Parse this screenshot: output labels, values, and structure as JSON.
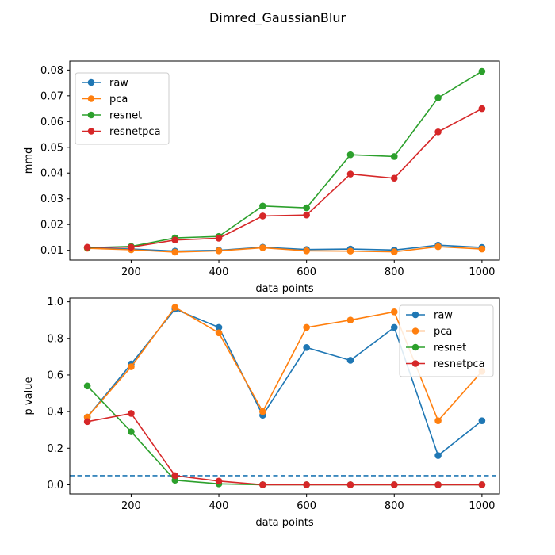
{
  "figure": {
    "suptitle": "Dimred_GaussianBlur"
  },
  "chart_data": [
    {
      "type": "line",
      "xlabel": "data points",
      "ylabel": "mmd",
      "x": [
        100,
        200,
        300,
        400,
        500,
        600,
        700,
        800,
        900,
        1000
      ],
      "xlim": [
        60,
        1040
      ],
      "ylim": [
        0.0062,
        0.0835
      ],
      "xticks": [
        200,
        400,
        600,
        800,
        1000
      ],
      "yticks": [
        0.01,
        0.02,
        0.03,
        0.04,
        0.05,
        0.06,
        0.07,
        0.08
      ],
      "ytick_labels": [
        "0.01",
        "0.02",
        "0.03",
        "0.04",
        "0.05",
        "0.06",
        "0.07",
        "0.08"
      ],
      "legend": "top-left",
      "grid": false,
      "series": [
        {
          "name": "raw",
          "color": "#1f77b4",
          "values": [
            0.011,
            0.0105,
            0.0097,
            0.01,
            0.0112,
            0.0103,
            0.0105,
            0.0101,
            0.012,
            0.0111
          ]
        },
        {
          "name": "pca",
          "color": "#ff7f0e",
          "values": [
            0.0108,
            0.0102,
            0.0093,
            0.0098,
            0.011,
            0.0098,
            0.0097,
            0.0094,
            0.0114,
            0.0105
          ]
        },
        {
          "name": "resnet",
          "color": "#2ca02c",
          "values": [
            0.011,
            0.0115,
            0.0148,
            0.0154,
            0.0272,
            0.0265,
            0.0471,
            0.0464,
            0.0692,
            0.0795
          ]
        },
        {
          "name": "resnetpca",
          "color": "#d62728",
          "values": [
            0.0112,
            0.0112,
            0.014,
            0.0147,
            0.0233,
            0.0237,
            0.0396,
            0.038,
            0.056,
            0.065
          ]
        }
      ]
    },
    {
      "type": "line",
      "xlabel": "data points",
      "ylabel": "p value",
      "x": [
        100,
        200,
        300,
        400,
        500,
        600,
        700,
        800,
        900,
        1000
      ],
      "xlim": [
        60,
        1040
      ],
      "ylim": [
        -0.05,
        1.02
      ],
      "xticks": [
        200,
        400,
        600,
        800,
        1000
      ],
      "yticks": [
        0.0,
        0.2,
        0.4,
        0.6,
        0.8,
        1.0
      ],
      "ytick_labels": [
        "0.0",
        "0.2",
        "0.4",
        "0.6",
        "0.8",
        "1.0"
      ],
      "legend": "top-right",
      "grid": false,
      "reference_line": {
        "y": 0.05,
        "style": "dashed",
        "color": "#1f77b4"
      },
      "series": [
        {
          "name": "raw",
          "color": "#1f77b4",
          "values": [
            0.37,
            0.66,
            0.96,
            0.86,
            0.38,
            0.75,
            0.68,
            0.86,
            0.16,
            0.35
          ]
        },
        {
          "name": "pca",
          "color": "#ff7f0e",
          "values": [
            0.37,
            0.645,
            0.97,
            0.83,
            0.4,
            0.86,
            0.9,
            0.945,
            0.35,
            0.62
          ]
        },
        {
          "name": "resnet",
          "color": "#2ca02c",
          "values": [
            0.54,
            0.29,
            0.025,
            0.005,
            0.0,
            0.0,
            0.0,
            0.0,
            0.0,
            0.0
          ]
        },
        {
          "name": "resnetpca",
          "color": "#d62728",
          "values": [
            0.345,
            0.39,
            0.05,
            0.02,
            0.0,
            0.0,
            0.0,
            0.0,
            0.0,
            0.0
          ]
        }
      ]
    }
  ]
}
